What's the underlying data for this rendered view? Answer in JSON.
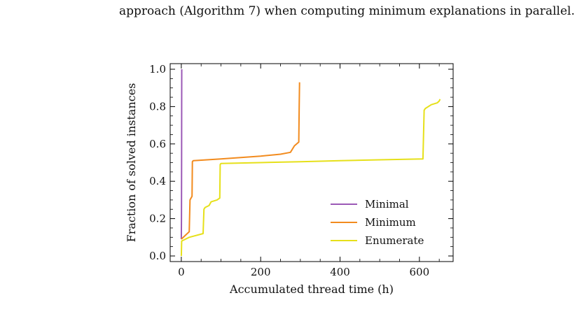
{
  "captions": {
    "top": "approach (Algorithm 7) when computing minimum explanations in parallel.",
    "bottom": ""
  },
  "chart_data": {
    "type": "line",
    "title": "",
    "xlabel": "Accumulated thread time (h)",
    "ylabel": "Fraction of solved instances",
    "xlim": [
      -28,
      685
    ],
    "ylim": [
      -0.03,
      1.03
    ],
    "xticks": [
      0,
      200,
      400,
      600
    ],
    "yticks": [
      0.0,
      0.2,
      0.4,
      0.6,
      0.8,
      1.0
    ],
    "x_minor_step": 50,
    "y_minor_step": 0.05,
    "legend_position": "lower-right",
    "series": [
      {
        "name": "Minimal",
        "color": "#9b59b6",
        "points": [
          [
            0,
            0.09
          ],
          [
            0.5,
            0.2
          ],
          [
            0.8,
            0.5
          ],
          [
            1.0,
            0.8
          ],
          [
            1.2,
            1.0
          ]
        ]
      },
      {
        "name": "Minimum",
        "color": "#f28b1e",
        "points": [
          [
            0,
            0.09
          ],
          [
            10,
            0.11
          ],
          [
            20,
            0.13
          ],
          [
            22,
            0.3
          ],
          [
            27,
            0.32
          ],
          [
            28,
            0.505
          ],
          [
            30,
            0.51
          ],
          [
            100,
            0.52
          ],
          [
            200,
            0.535
          ],
          [
            250,
            0.545
          ],
          [
            275,
            0.555
          ],
          [
            285,
            0.59
          ],
          [
            296,
            0.61
          ],
          [
            297,
            0.8
          ],
          [
            298,
            0.93
          ]
        ]
      },
      {
        "name": "Enumerate",
        "color": "#e6e01a",
        "points": [
          [
            0,
            0.0
          ],
          [
            1,
            0.08
          ],
          [
            20,
            0.1
          ],
          [
            55,
            0.12
          ],
          [
            57,
            0.25
          ],
          [
            60,
            0.26
          ],
          [
            70,
            0.27
          ],
          [
            75,
            0.29
          ],
          [
            90,
            0.3
          ],
          [
            97,
            0.31
          ],
          [
            98,
            0.49
          ],
          [
            100,
            0.495
          ],
          [
            200,
            0.5
          ],
          [
            300,
            0.505
          ],
          [
            400,
            0.51
          ],
          [
            500,
            0.515
          ],
          [
            609,
            0.52
          ],
          [
            612,
            0.78
          ],
          [
            615,
            0.79
          ],
          [
            630,
            0.81
          ],
          [
            645,
            0.82
          ],
          [
            650,
            0.83
          ],
          [
            652,
            0.84
          ]
        ]
      }
    ]
  }
}
